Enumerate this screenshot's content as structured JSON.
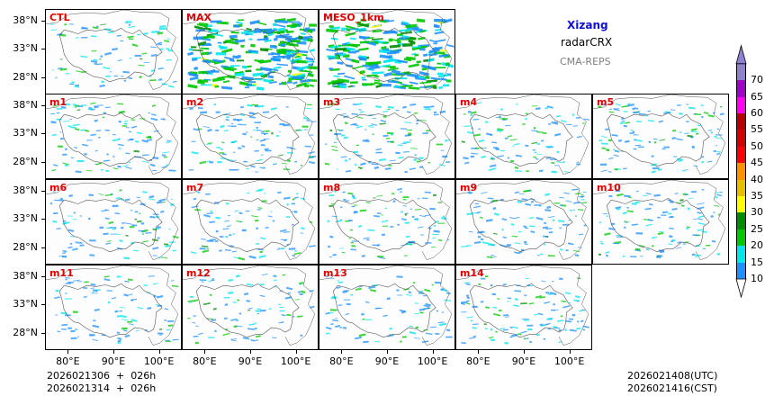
{
  "title": "Xizang",
  "variable": "radarCRX",
  "model": "CMA-REPS",
  "init_time_utc": "2026021306",
  "init_time_cst": "2026021314",
  "plus_sign": "+",
  "lead": "026h",
  "valid_utc": "2026021408(UTC)",
  "valid_cst": "2026021416(CST)",
  "lat_ticks": [
    "38°N",
    "33°N",
    "28°N"
  ],
  "lon_ticks": [
    "80°E",
    "90°E",
    "100°E"
  ],
  "panels": [
    {
      "label": "CTL",
      "density": 0.35
    },
    {
      "label": "MAX",
      "density": 1.0
    },
    {
      "label": "MESO_1km",
      "density": 0.9
    },
    {
      "label": "m1",
      "density": 0.45
    },
    {
      "label": "m2",
      "density": 0.45
    },
    {
      "label": "m3",
      "density": 0.45
    },
    {
      "label": "m4",
      "density": 0.4
    },
    {
      "label": "m5",
      "density": 0.45
    },
    {
      "label": "m6",
      "density": 0.4
    },
    {
      "label": "m7",
      "density": 0.35
    },
    {
      "label": "m8",
      "density": 0.4
    },
    {
      "label": "m9",
      "density": 0.45
    },
    {
      "label": "m10",
      "density": 0.45
    },
    {
      "label": "m11",
      "density": 0.35
    },
    {
      "label": "m12",
      "density": 0.35
    },
    {
      "label": "m13",
      "density": 0.35
    },
    {
      "label": "m14",
      "density": 0.45
    }
  ],
  "colorbar": {
    "labels": [
      "10",
      "15",
      "20",
      "25",
      "30",
      "35",
      "40",
      "45",
      "50",
      "55",
      "60",
      "65",
      "70"
    ],
    "colors": [
      "#1e90ff",
      "#00e5ee",
      "#00c800",
      "#008c00",
      "#ffff00",
      "#e6c000",
      "#ff9000",
      "#ff0000",
      "#d20000",
      "#b40000",
      "#ff00f0",
      "#a000c8",
      "#9080d0"
    ],
    "low_extend_color": "#ffffff"
  },
  "chart_data": {
    "type": "map-panels",
    "region": "Xizang",
    "field": "radarCRX",
    "units_levels": [
      10,
      15,
      20,
      25,
      30,
      35,
      40,
      45,
      50,
      55,
      60,
      65,
      70
    ],
    "lat_range": [
      25,
      40
    ],
    "lon_range": [
      75,
      105
    ],
    "members": [
      "CTL",
      "MAX",
      "MESO_1km",
      "m1",
      "m2",
      "m3",
      "m4",
      "m5",
      "m6",
      "m7",
      "m8",
      "m9",
      "m10",
      "m11",
      "m12",
      "m13",
      "m14"
    ]
  }
}
